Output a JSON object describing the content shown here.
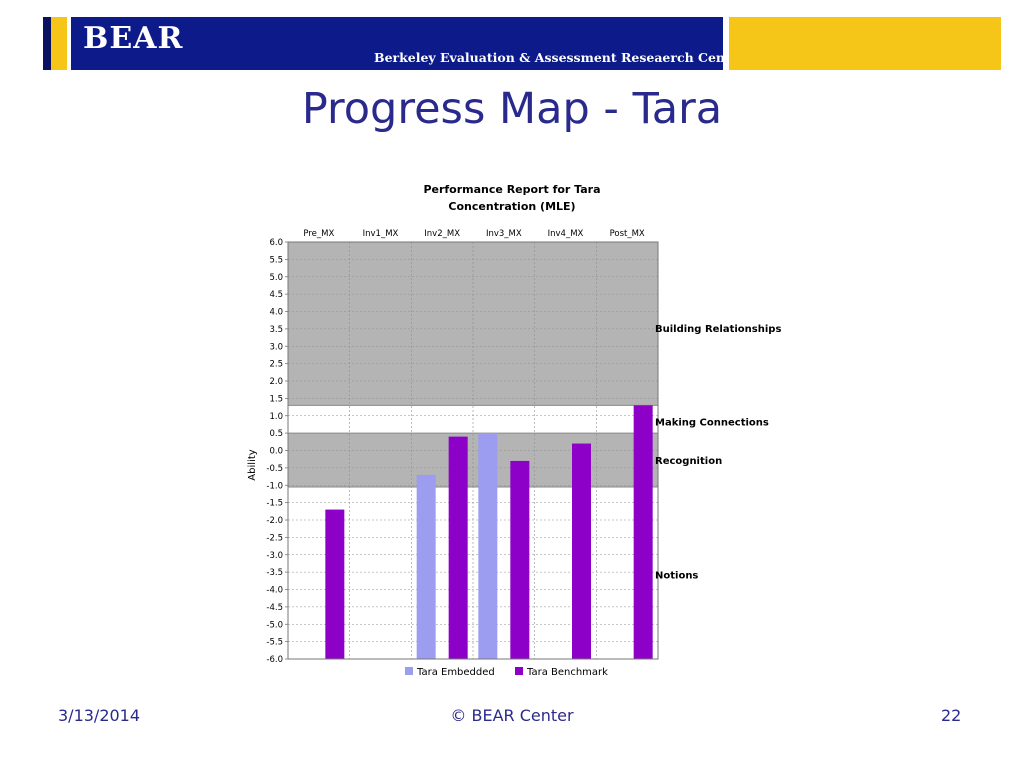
{
  "header": {
    "logo": "BEAR",
    "tagline": "Berkeley Evaluation & Assessment Reseaerch Center"
  },
  "slide": {
    "title": "Progress Map - Tara"
  },
  "footer": {
    "date": "3/13/2014",
    "copyright": "© BEAR Center",
    "page_number": "22"
  },
  "colors": {
    "header_blue": "#0d1a8a",
    "header_yellow": "#f5c518",
    "title_blue": "#2a2a8c",
    "embedded": "#9c9cf0",
    "benchmark": "#8c00c8",
    "band_gray": "#b4b4b4"
  },
  "chart_data": {
    "type": "bar",
    "title": "Performance Report for Tara",
    "subtitle": "Concentration (MLE)",
    "xlabel": "",
    "ylabel": "Ability",
    "categories": [
      "Pre_MX",
      "Inv1_MX",
      "Inv2_MX",
      "Inv3_MX",
      "Inv4_MX",
      "Post_MX"
    ],
    "series": [
      {
        "name": "Tara Embedded",
        "color": "#9c9cf0",
        "values": [
          null,
          null,
          -0.7,
          0.5,
          null,
          null
        ]
      },
      {
        "name": "Tara Benchmark",
        "color": "#8c00c8",
        "values": [
          -1.7,
          null,
          0.4,
          -0.3,
          0.2,
          1.3
        ]
      }
    ],
    "ylim": [
      -6.0,
      6.0
    ],
    "yticks": [
      "6.0",
      "5.5",
      "5.0",
      "4.5",
      "4.0",
      "3.5",
      "3.0",
      "2.5",
      "2.0",
      "1.5",
      "1.0",
      "0.5",
      "0.0",
      "-0.5",
      "-1.0",
      "-1.5",
      "-2.0",
      "-2.5",
      "-3.0",
      "-3.5",
      "-4.0",
      "-4.5",
      "-5.0",
      "-5.5",
      "-6.0"
    ],
    "bands": [
      {
        "label": "Building Relationships",
        "from": 1.3,
        "to": 6.0,
        "shaded": true
      },
      {
        "label": "Making Connections",
        "from": 0.5,
        "to": 1.3,
        "shaded": false
      },
      {
        "label": "Recognition",
        "from": -1.05,
        "to": 0.5,
        "shaded": true
      },
      {
        "label": "Notions",
        "from": -6.0,
        "to": -1.05,
        "shaded": false
      }
    ],
    "band_label_values": [
      3.5,
      0.8,
      -0.3,
      -3.6
    ],
    "grid": true,
    "legend_position": "bottom"
  }
}
